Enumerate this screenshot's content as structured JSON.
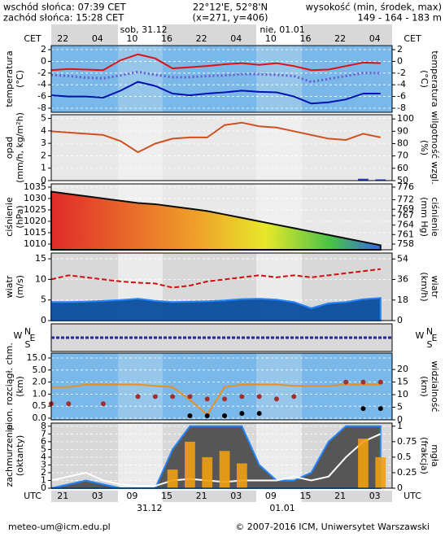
{
  "header": {
    "sunrise": "wschód słońca: 07:39 CET",
    "sunset": "zachód słońca: 15:28 CET",
    "coords": "22°12'E, 52°8'N",
    "grid_point": "(x=271, y=406)",
    "altitude_label": "wysokość (min, środek, max)",
    "altitude": "149 - 164 - 183 m"
  },
  "time": {
    "xlim": [
      0,
      59
    ],
    "cet_label": "CET",
    "utc_label": "UTC",
    "cet_ticks": [
      {
        "value": 2,
        "label": "22"
      },
      {
        "value": 8,
        "label": "04"
      },
      {
        "value": 14,
        "label": "10"
      },
      {
        "value": 20,
        "label": "16"
      },
      {
        "value": 26,
        "label": "22"
      },
      {
        "value": 32,
        "label": "04"
      },
      {
        "value": 38,
        "label": "10"
      },
      {
        "value": 44,
        "label": "16"
      },
      {
        "value": 50,
        "label": "22"
      },
      {
        "value": 56,
        "label": "04"
      }
    ],
    "utc_ticks": [
      {
        "value": 2,
        "label": "21"
      },
      {
        "value": 8,
        "label": "03"
      },
      {
        "value": 14,
        "label": "09"
      },
      {
        "value": 20,
        "label": "15"
      },
      {
        "value": 26,
        "label": "21"
      },
      {
        "value": 32,
        "label": "03"
      },
      {
        "value": 38,
        "label": "09"
      },
      {
        "value": 44,
        "label": "15"
      },
      {
        "value": 50,
        "label": "21"
      },
      {
        "value": 56,
        "label": "03"
      }
    ],
    "days_top": [
      {
        "value": 16,
        "label": "sob, 31.12"
      },
      {
        "value": 40,
        "label": "nie, 01.01"
      }
    ],
    "days_bottom": [
      {
        "value": 17,
        "label": "31.12"
      },
      {
        "value": 40,
        "label": "01.01"
      }
    ]
  },
  "direction": {
    "compass": [
      "N",
      "W",
      "E",
      "S"
    ]
  },
  "chart_data": [
    {
      "type": "line",
      "ylabel": [
        "temperatura",
        "(°C)"
      ],
      "y2label": [
        "(°C)",
        "temperatura"
      ],
      "ylim": [
        -8.7,
        2.7
      ],
      "yticks": [
        2,
        0,
        -2,
        -4,
        -6,
        -8
      ],
      "y2lim": [
        -8.7,
        2.7
      ],
      "y2ticks": [
        2,
        0,
        -2,
        -4,
        -6,
        -8
      ],
      "x": [
        0,
        3,
        6,
        9,
        12,
        15,
        18,
        21,
        24,
        27,
        30,
        33,
        36,
        39,
        42,
        45,
        48,
        51,
        54,
        57
      ],
      "series": [
        {
          "style": "line",
          "color": "#e01010",
          "values": [
            -1.5,
            -1.3,
            -1.4,
            -1.5,
            0.2,
            1.2,
            0.5,
            -1.2,
            -1.0,
            -0.8,
            -0.5,
            -0.3,
            -0.6,
            -0.3,
            -0.8,
            -1.5,
            -1.4,
            -0.8,
            -0.2,
            -0.3
          ]
        },
        {
          "style": "dotted",
          "color": "#6a5acd",
          "values": [
            -2.3,
            -2.5,
            -2.8,
            -2.9,
            -2.4,
            -1.8,
            -2.3,
            -2.7,
            -2.7,
            -2.5,
            -2.4,
            -2.2,
            -2.2,
            -2.3,
            -2.5,
            -3.5,
            -3.0,
            -2.5,
            -2.0,
            -2.0
          ]
        },
        {
          "style": "line",
          "color": "#0010b0",
          "values": [
            -5.8,
            -6.0,
            -6.0,
            -6.2,
            -5.0,
            -3.5,
            -4.2,
            -5.5,
            -5.8,
            -5.5,
            -5.3,
            -5.0,
            -5.2,
            -5.3,
            -6.0,
            -7.2,
            -7.0,
            -6.5,
            -5.5,
            -5.5
          ]
        }
      ]
    },
    {
      "type": "line",
      "ylabel": [
        "opad",
        "(mm/h, kg/m²h)"
      ],
      "y2label": [
        "(%)",
        "wilgotność wzgl."
      ],
      "ylim": [
        0,
        5.3
      ],
      "yticks": [
        0,
        1,
        2,
        3,
        4,
        5
      ],
      "y2lim": [
        50,
        103.4
      ],
      "y2ticks": [
        50,
        60,
        70,
        80,
        90,
        100
      ],
      "x": [
        0,
        3,
        6,
        9,
        12,
        15,
        18,
        21,
        24,
        27,
        30,
        33,
        36,
        39,
        42,
        45,
        48,
        51,
        54,
        57
      ],
      "series": [
        {
          "style": "bar",
          "color": "#1030c0",
          "values": [
            0,
            0,
            0,
            0,
            0,
            0,
            0,
            0,
            0,
            0,
            0,
            0,
            0,
            0,
            0,
            0,
            0,
            0,
            0.15,
            0.1
          ]
        },
        {
          "style": "line",
          "axis": "y2",
          "color": "#d05020",
          "values": [
            90,
            89,
            88,
            87,
            82,
            73,
            80,
            84,
            85,
            85,
            95,
            97,
            94,
            93,
            90,
            87,
            84,
            83,
            88,
            85
          ]
        }
      ]
    },
    {
      "type": "area",
      "ylabel": [
        "ciśnienie",
        "(hPa)"
      ],
      "y2label": [
        "(mm Hg)",
        "ciśnienie"
      ],
      "ylim": [
        1007.5,
        1036.4
      ],
      "yticks": [
        1010,
        1015,
        1020,
        1025,
        1030,
        1035
      ],
      "y2lim": [
        756.2,
        777
      ],
      "y2ticks": [
        758,
        761,
        764,
        767,
        769,
        772,
        776
      ],
      "x": [
        0,
        3,
        6,
        9,
        12,
        15,
        18,
        21,
        24,
        27,
        30,
        33,
        36,
        39,
        42,
        45,
        48,
        51,
        54,
        57
      ],
      "series": [
        {
          "style": "gradient",
          "color": "#000000",
          "values": [
            1033,
            1032,
            1031,
            1030,
            1029,
            1028,
            1027.5,
            1026.5,
            1025.5,
            1024.5,
            1023,
            1021.5,
            1020,
            1018.5,
            1017,
            1015.5,
            1014,
            1012.5,
            1011,
            1009.5
          ]
        }
      ]
    },
    {
      "type": "line",
      "ylabel": [
        "wiatr",
        "(m/s)"
      ],
      "y2label": [
        "(km/h)",
        "wiatr"
      ],
      "ylim": [
        0,
        16.4
      ],
      "yticks": [
        0,
        5,
        10,
        15
      ],
      "y2lim": [
        0,
        59.2
      ],
      "y2ticks": [
        0,
        18,
        36,
        54
      ],
      "x": [
        0,
        3,
        6,
        9,
        12,
        15,
        18,
        21,
        24,
        27,
        30,
        33,
        36,
        39,
        42,
        45,
        48,
        51,
        54,
        57
      ],
      "series": [
        {
          "style": "area",
          "color": "#0a4fa0",
          "values": [
            4.5,
            4.5,
            4.6,
            4.8,
            5.0,
            5.3,
            4.8,
            4.5,
            4.6,
            4.7,
            4.9,
            5.2,
            5.3,
            5.1,
            4.5,
            3.0,
            4.2,
            4.5,
            5.2,
            5.5
          ]
        },
        {
          "style": "dashed",
          "color": "#d01010",
          "values": [
            10,
            11,
            10.5,
            10,
            9.5,
            9.2,
            9,
            8,
            8.5,
            9.5,
            10,
            10.5,
            11,
            10.5,
            11,
            10.5,
            11,
            11.5,
            12,
            12.5
          ]
        }
      ]
    },
    {
      "type": "scatter",
      "scale": "ticks",
      "ylabel": [
        "pion. rozciągł. chm.",
        "(km)"
      ],
      "y2label": [
        "(km)",
        "widzialność"
      ],
      "ylim": [
        0,
        15
      ],
      "yticks": [
        {
          "value": 0,
          "label": "0.0"
        },
        {
          "value": 0.5,
          "label": "0.5"
        },
        {
          "value": 1,
          "label": "1.0"
        },
        {
          "value": 2,
          "label": "2.0"
        },
        {
          "value": 5,
          "label": "5.0"
        },
        {
          "value": 15,
          "label": "15.0"
        }
      ],
      "y2lim": [
        0,
        26.5
      ],
      "y2ticks": [
        0,
        5,
        10,
        15,
        20
      ],
      "x": [
        0,
        3,
        6,
        9,
        12,
        15,
        18,
        21,
        24,
        27,
        30,
        33,
        36,
        39,
        42,
        45,
        48,
        51,
        54,
        57
      ],
      "series": [
        {
          "style": "line",
          "axis": "y2",
          "color": "#e89020",
          "values": [
            13,
            13,
            14,
            14,
            14,
            14,
            13.5,
            13,
            8,
            2,
            13,
            14,
            14,
            14,
            13.5,
            13.5,
            13.5,
            14,
            14,
            14
          ]
        },
        {
          "style": "dots",
          "color": "#a03030",
          "values": [
            0.6,
            0.6,
            null,
            0.6,
            null,
            0.9,
            0.9,
            0.9,
            0.9,
            0.8,
            0.8,
            0.9,
            0.9,
            0.8,
            0.9,
            null,
            null,
            2.0,
            2.0,
            2.0
          ]
        },
        {
          "style": "dots",
          "color": "#000000",
          "values": [
            null,
            null,
            null,
            null,
            null,
            null,
            null,
            null,
            0.1,
            0.1,
            0.1,
            0.2,
            0.2,
            null,
            null,
            null,
            null,
            null,
            0.4,
            0.4
          ]
        }
      ]
    },
    {
      "type": "area",
      "ylabel": [
        "zachmurzenie",
        "(oktanty)"
      ],
      "y2label": [
        "(frakcja)",
        "mgła"
      ],
      "ylim": [
        0,
        8.4
      ],
      "yticks": [
        0,
        1,
        2,
        3,
        4,
        5,
        6,
        7,
        8
      ],
      "y2lim": [
        0,
        1.05
      ],
      "y2ticks": [
        0,
        0.25,
        0.5,
        0.75,
        1
      ],
      "x": [
        0,
        3,
        6,
        9,
        12,
        15,
        18,
        21,
        24,
        27,
        30,
        33,
        36,
        39,
        42,
        45,
        48,
        51,
        54,
        57
      ],
      "series": [
        {
          "style": "area",
          "color": "#505050",
          "values": [
            0,
            0.5,
            1,
            0.5,
            0,
            0,
            0,
            5,
            8,
            8,
            8,
            8,
            3,
            1,
            1,
            2,
            6,
            8,
            8,
            8
          ]
        },
        {
          "style": "line",
          "color": "#ffffff",
          "values": [
            1,
            1.5,
            2,
            1,
            0.5,
            0.3,
            0.3,
            1,
            1.2,
            1,
            0.8,
            1,
            1,
            1,
            1.5,
            1,
            1.5,
            4,
            6,
            7
          ]
        },
        {
          "style": "bar",
          "axis": "y2",
          "color": "#f0a010",
          "values": [
            0,
            0,
            0,
            0,
            0,
            0,
            0,
            0.3,
            0.75,
            0.5,
            0.6,
            0.4,
            0,
            0,
            0,
            0,
            0,
            0,
            0.8,
            0.5
          ]
        }
      ]
    }
  ],
  "footer": {
    "email": "meteo-um@icm.edu.pl",
    "copyright": "© 2007-2016 ICM, Uniwersytet Warszawski"
  }
}
